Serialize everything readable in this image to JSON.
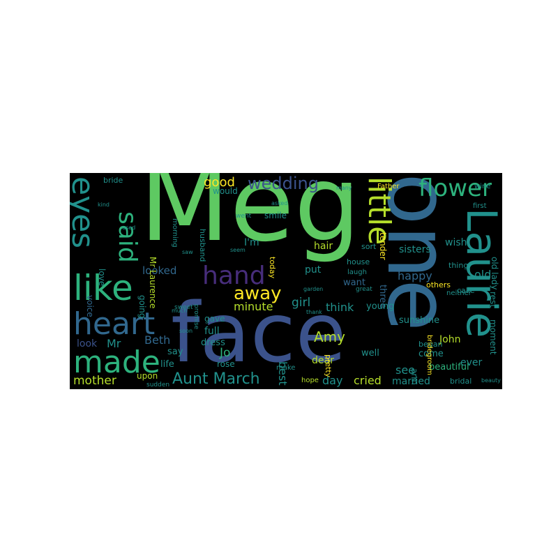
{
  "palette": {
    "background": "#000000",
    "page": "#ffffff",
    "green": "#5ec962",
    "bright_green": "#7ad151",
    "teal": "#21918c",
    "teal_light": "#2db27d",
    "blue": "#3b528b",
    "blue_mid": "#31688e",
    "purple": "#472d7b",
    "dark_purple": "#440154",
    "yellow": "#fde725",
    "yellow_green": "#b5de2b"
  },
  "words": [
    {
      "id": "meg",
      "text": "Meg"
    },
    {
      "id": "face",
      "text": "face"
    },
    {
      "id": "one",
      "text": "one"
    },
    {
      "id": "laurie",
      "text": "Laurie"
    },
    {
      "id": "little",
      "text": "little"
    },
    {
      "id": "eyes",
      "text": "eyes"
    },
    {
      "id": "like",
      "text": "like"
    },
    {
      "id": "heart",
      "text": "heart"
    },
    {
      "id": "made",
      "text": "made"
    },
    {
      "id": "said",
      "text": "said"
    },
    {
      "id": "hand",
      "text": "hand"
    },
    {
      "id": "flower",
      "text": "flower"
    },
    {
      "id": "wedding",
      "text": "wedding"
    },
    {
      "id": "away",
      "text": "away"
    },
    {
      "id": "aunt_march",
      "text": "Aunt March"
    },
    {
      "id": "good",
      "text": "good"
    },
    {
      "id": "amy",
      "text": "Amy"
    },
    {
      "id": "mother",
      "text": "mother"
    },
    {
      "id": "cried",
      "text": "cried"
    },
    {
      "id": "girl",
      "text": "girl"
    },
    {
      "id": "best",
      "text": "best"
    },
    {
      "id": "minute",
      "text": "minute"
    },
    {
      "id": "think",
      "text": "think"
    },
    {
      "id": "beth",
      "text": "Beth"
    },
    {
      "id": "jo",
      "text": "Jo"
    },
    {
      "id": "mr",
      "text": "Mr"
    },
    {
      "id": "looked",
      "text": "looked"
    },
    {
      "id": "old",
      "text": "old"
    },
    {
      "id": "happy",
      "text": "happy"
    },
    {
      "id": "ever",
      "text": "ever"
    },
    {
      "id": "sisters",
      "text": "sisters"
    },
    {
      "id": "wish",
      "text": "wish"
    },
    {
      "id": "see",
      "text": "see"
    },
    {
      "id": "john",
      "text": "John"
    },
    {
      "id": "married",
      "text": "married"
    },
    {
      "id": "day",
      "text": "day"
    },
    {
      "id": "beautiful",
      "text": "beautiful"
    },
    {
      "id": "moment",
      "text": "moment"
    },
    {
      "id": "rest",
      "text": "rest"
    },
    {
      "id": "old_lady",
      "text": "old lady"
    },
    {
      "id": "three",
      "text": "three"
    },
    {
      "id": "tender",
      "text": "tender"
    },
    {
      "id": "sunshine",
      "text": "sunshine"
    },
    {
      "id": "young",
      "text": "young"
    },
    {
      "id": "want",
      "text": "want"
    },
    {
      "id": "put",
      "text": "put"
    },
    {
      "id": "hair",
      "text": "hair"
    },
    {
      "id": "im",
      "text": "I'm"
    },
    {
      "id": "would",
      "text": "would"
    },
    {
      "id": "smile",
      "text": "smile"
    },
    {
      "id": "mr_laurence",
      "text": "Mr Laurence"
    },
    {
      "id": "going",
      "text": "going"
    },
    {
      "id": "love",
      "text": "love"
    },
    {
      "id": "voice",
      "text": "voice"
    },
    {
      "id": "look",
      "text": "look"
    },
    {
      "id": "life",
      "text": "life"
    },
    {
      "id": "upon",
      "text": "upon"
    },
    {
      "id": "sudden",
      "text": "sudden"
    },
    {
      "id": "full",
      "text": "full"
    },
    {
      "id": "dress",
      "text": "dress"
    },
    {
      "id": "say",
      "text": "say"
    },
    {
      "id": "rose",
      "text": "rose"
    },
    {
      "id": "gave",
      "text": "gave"
    },
    {
      "id": "dear",
      "text": "dear"
    },
    {
      "id": "well",
      "text": "well"
    },
    {
      "id": "come",
      "text": "come"
    },
    {
      "id": "began",
      "text": "began"
    },
    {
      "id": "cake",
      "text": "cake"
    },
    {
      "id": "others",
      "text": "others"
    },
    {
      "id": "thing",
      "text": "thing"
    },
    {
      "id": "neither",
      "text": "neither"
    },
    {
      "id": "bridal",
      "text": "bridal"
    },
    {
      "id": "beauty",
      "text": "beauty"
    },
    {
      "id": "bridegroom",
      "text": "bridegroom"
    },
    {
      "id": "arm",
      "text": "arm"
    },
    {
      "id": "pretty",
      "text": "pretty"
    },
    {
      "id": "hope",
      "text": "hope"
    },
    {
      "id": "make",
      "text": "make"
    },
    {
      "id": "house",
      "text": "house"
    },
    {
      "id": "laugh",
      "text": "laugh"
    },
    {
      "id": "sort",
      "text": "sort"
    },
    {
      "id": "today",
      "text": "today"
    },
    {
      "id": "husband",
      "text": "husband"
    },
    {
      "id": "promise",
      "text": "promise"
    },
    {
      "id": "morning",
      "text": "morning"
    },
    {
      "id": "bride",
      "text": "bride"
    },
    {
      "id": "went",
      "text": "went"
    },
    {
      "id": "many",
      "text": "many"
    },
    {
      "id": "father",
      "text": "Father"
    },
    {
      "id": "first",
      "text": "first"
    },
    {
      "id": "wine",
      "text": "wine"
    },
    {
      "id": "asked",
      "text": "asked"
    },
    {
      "id": "great",
      "text": "great"
    },
    {
      "id": "garden",
      "text": "garden"
    },
    {
      "id": "thank",
      "text": "thank"
    },
    {
      "id": "seem",
      "text": "seem"
    },
    {
      "id": "sweet",
      "text": "sweet"
    },
    {
      "id": "kind",
      "text": "kind"
    },
    {
      "id": "used",
      "text": "used"
    },
    {
      "id": "much",
      "text": "much"
    },
    {
      "id": "saw",
      "text": "saw"
    },
    {
      "id": "soon",
      "text": "soon"
    }
  ]
}
